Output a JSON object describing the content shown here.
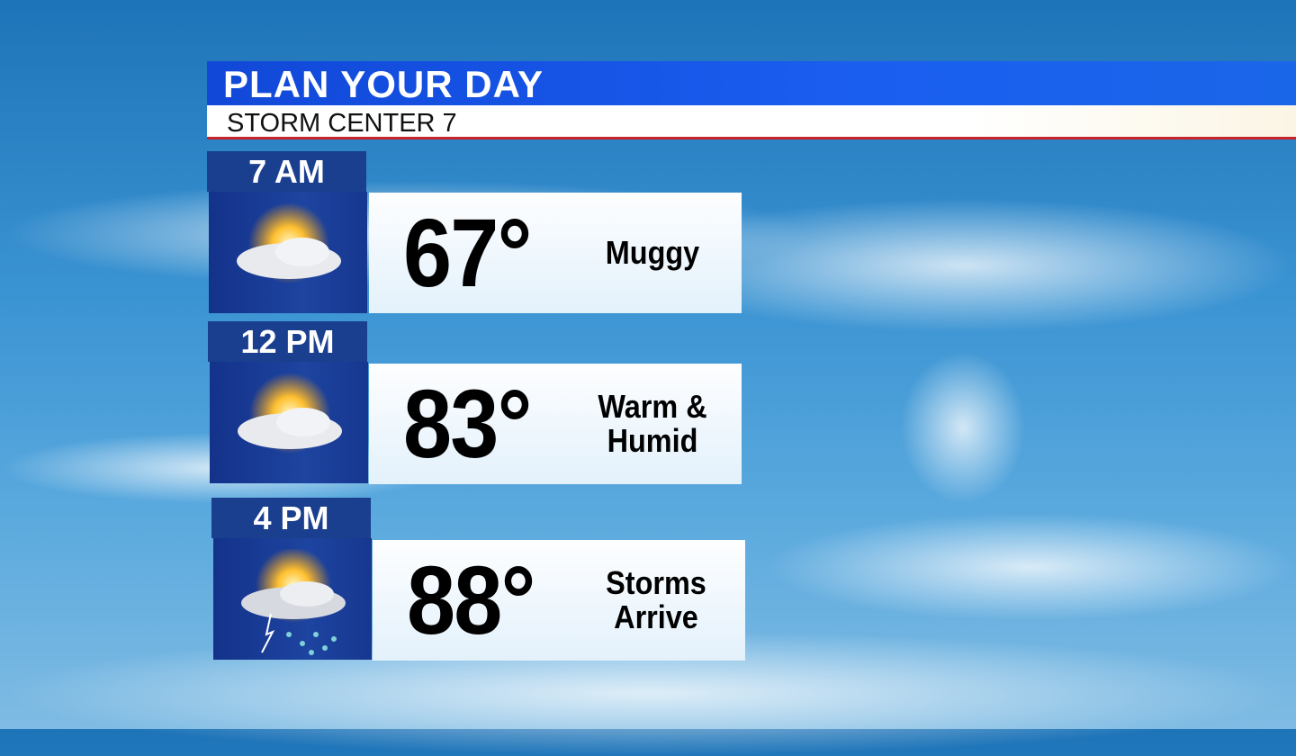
{
  "header": {
    "title": "PLAN YOUR DAY",
    "subtitle": "STORM CENTER 7"
  },
  "forecast": [
    {
      "time": "7 AM",
      "temp": "67°",
      "desc": "Muggy",
      "icon": "partly-sunny-icon"
    },
    {
      "time": "12 PM",
      "temp": "83°",
      "desc": "Warm & Humid",
      "icon": "partly-sunny-icon"
    },
    {
      "time": "4 PM",
      "temp": "88°",
      "desc": "Storms Arrive",
      "icon": "sun-thunderstorm-icon"
    }
  ],
  "colors": {
    "header_blue": "#1a5ef0",
    "label_blue": "#1a3f8e",
    "accent_red": "#c8242b"
  }
}
